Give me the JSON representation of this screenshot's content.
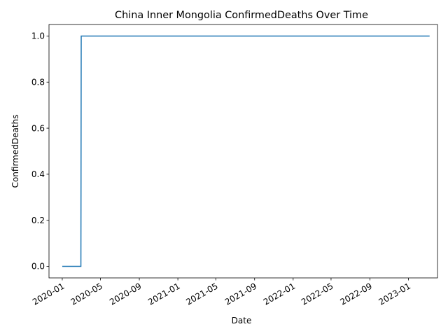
{
  "chart_data": {
    "type": "line",
    "title": "China Inner Mongolia ConfirmedDeaths Over Time",
    "xlabel": "Date",
    "ylabel": "ConfirmedDeaths",
    "x_ticks": [
      "2020-01",
      "2020-05",
      "2020-09",
      "2021-01",
      "2021-05",
      "2021-09",
      "2022-01",
      "2022-05",
      "2022-09",
      "2023-01"
    ],
    "y_ticks": [
      "0.0",
      "0.2",
      "0.4",
      "0.6",
      "0.8",
      "1.0"
    ],
    "xlim": [
      "2019-11-20",
      "2023-04-03"
    ],
    "ylim": [
      -0.05,
      1.05
    ],
    "grid": false,
    "line_color": "#1f77b4",
    "series": [
      {
        "points": [
          {
            "x": "2020-01-01",
            "y": 0
          },
          {
            "x": "2020-02-29",
            "y": 0
          },
          {
            "x": "2020-03-01",
            "y": 1
          },
          {
            "x": "2023-03-09",
            "y": 1
          }
        ]
      }
    ]
  }
}
